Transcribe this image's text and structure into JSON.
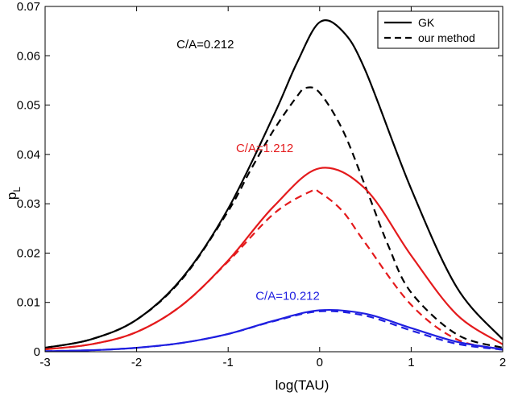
{
  "chart_data": {
    "type": "line",
    "xlabel": "log(TAU)",
    "ylabel_main": "p",
    "ylabel_sub": "L",
    "xlim": [
      -3,
      2
    ],
    "ylim": [
      0,
      0.07
    ],
    "xticks": [
      -3,
      -2,
      -1,
      0,
      1,
      2
    ],
    "xtick_labels": [
      "-3",
      "-2",
      "-1",
      "0",
      "1",
      "2"
    ],
    "yticks": [
      0,
      0.01,
      0.02,
      0.03,
      0.04,
      0.05,
      0.06,
      0.07
    ],
    "ytick_labels": [
      "0",
      "0.01",
      "0.02",
      "0.03",
      "0.04",
      "0.05",
      "0.06",
      "0.07"
    ],
    "grid": false,
    "legend": {
      "placement": "top-right",
      "entries": [
        {
          "label": "GK",
          "style": "solid"
        },
        {
          "label": "our method",
          "style": "dashed"
        }
      ]
    },
    "annotations": [
      {
        "text": "C/A=0.212",
        "color": "#000000",
        "x": -1.25,
        "y": 0.0615
      },
      {
        "text": "C/A=1.212",
        "color": "#e41a1c",
        "x": -0.6,
        "y": 0.0405
      },
      {
        "text": "C/A=10.212",
        "color": "#1f1fe0",
        "x": -0.35,
        "y": 0.0105
      }
    ],
    "series": [
      {
        "group": "C/A=0.212",
        "style": "solid",
        "color": "#000000",
        "x": [
          -3,
          -2.5,
          -2,
          -1.5,
          -1,
          -0.5,
          -0.25,
          0,
          0.25,
          0.5,
          1,
          1.5,
          2
        ],
        "y": [
          0.0008,
          0.0025,
          0.0065,
          0.015,
          0.029,
          0.048,
          0.0585,
          0.0668,
          0.065,
          0.057,
          0.033,
          0.013,
          0.0025
        ]
      },
      {
        "group": "C/A=0.212",
        "style": "dashed",
        "color": "#000000",
        "x": [
          -3,
          -2.5,
          -2,
          -1.5,
          -1,
          -0.75,
          -0.5,
          -0.25,
          -0.15,
          0,
          0.25,
          0.5,
          0.75,
          1,
          1.5,
          2
        ],
        "y": [
          0.0008,
          0.0025,
          0.0065,
          0.0148,
          0.0285,
          0.037,
          0.045,
          0.0517,
          0.0535,
          0.0525,
          0.045,
          0.0335,
          0.0215,
          0.012,
          0.0035,
          0.0008
        ]
      },
      {
        "group": "C/A=1.212",
        "style": "solid",
        "color": "#e41a1c",
        "x": [
          -3,
          -2.5,
          -2,
          -1.5,
          -1,
          -0.5,
          0,
          0.5,
          1,
          1.5,
          2
        ],
        "y": [
          0.0005,
          0.0015,
          0.004,
          0.0095,
          0.0185,
          0.0295,
          0.0372,
          0.033,
          0.0195,
          0.0075,
          0.0015
        ]
      },
      {
        "group": "C/A=1.212",
        "style": "dashed",
        "color": "#e41a1c",
        "x": [
          -3,
          -2.5,
          -2,
          -1.5,
          -1,
          -0.5,
          -0.1,
          0,
          0.25,
          0.5,
          1,
          1.5,
          2
        ],
        "y": [
          0.0005,
          0.0015,
          0.004,
          0.0095,
          0.0183,
          0.028,
          0.0325,
          0.0323,
          0.0285,
          0.022,
          0.0095,
          0.0025,
          0.0005
        ]
      },
      {
        "group": "C/A=10.212",
        "style": "solid",
        "color": "#1f1fe0",
        "x": [
          -3,
          -2.5,
          -2,
          -1.5,
          -1,
          -0.5,
          0,
          0.5,
          1,
          1.5,
          2
        ],
        "y": [
          0.0001,
          0.0003,
          0.0008,
          0.0018,
          0.0036,
          0.0063,
          0.0084,
          0.0077,
          0.0048,
          0.002,
          0.0005
        ]
      },
      {
        "group": "C/A=10.212",
        "style": "dashed",
        "color": "#1f1fe0",
        "x": [
          -3,
          -2.5,
          -2,
          -1.5,
          -1,
          -0.5,
          0,
          0.5,
          1,
          1.5,
          2
        ],
        "y": [
          0.0001,
          0.0003,
          0.0008,
          0.0018,
          0.0036,
          0.0062,
          0.0082,
          0.0073,
          0.0043,
          0.0016,
          0.0004
        ]
      }
    ]
  }
}
